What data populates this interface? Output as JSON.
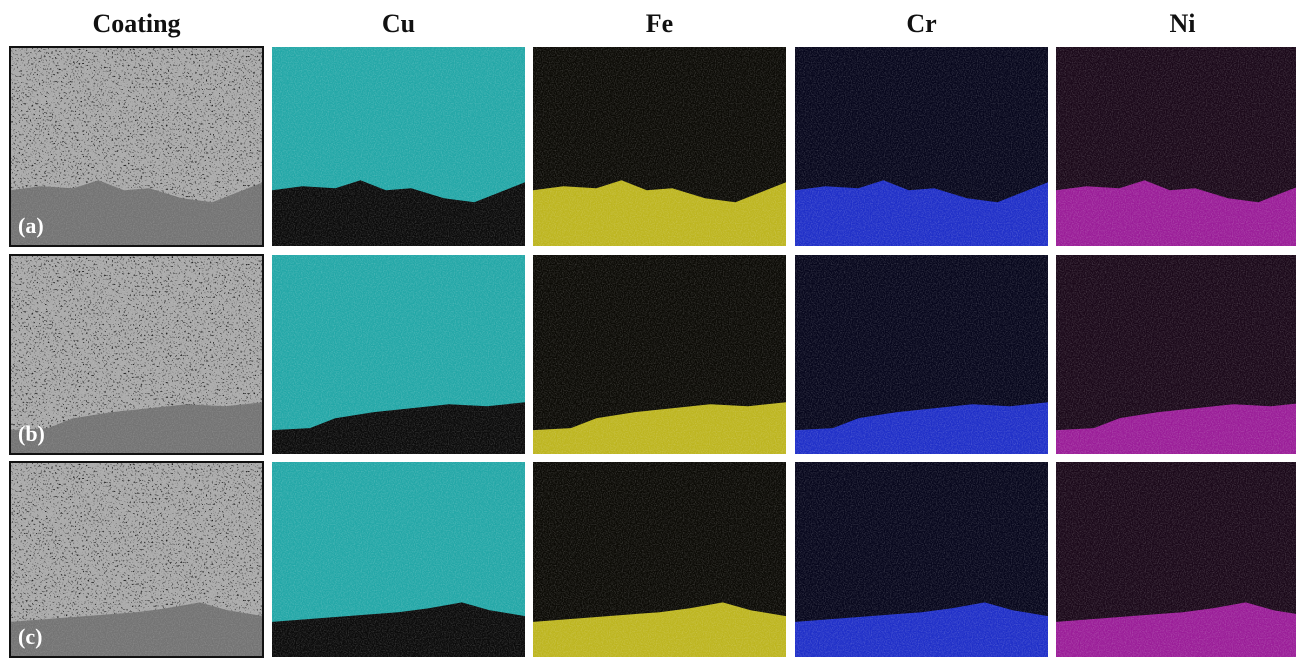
{
  "headers": [
    "Coating",
    "Cu",
    "Fe",
    "Cr",
    "Ni"
  ],
  "row_labels": [
    "(a)",
    "(b)",
    "(c)"
  ]
}
